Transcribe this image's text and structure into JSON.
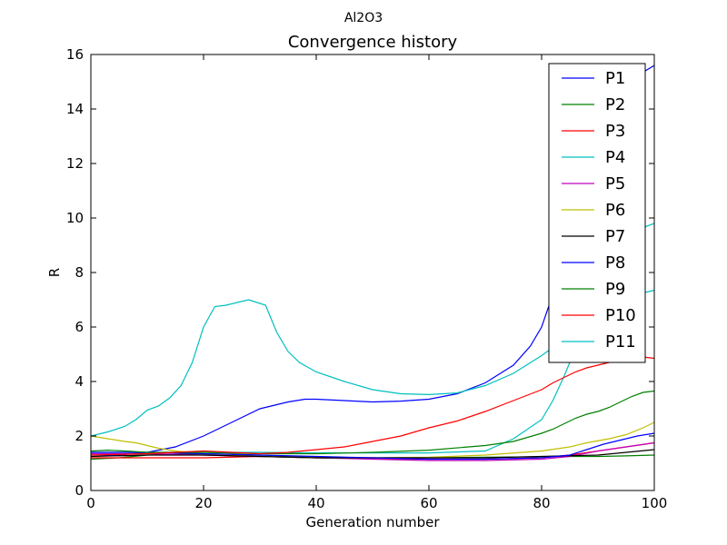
{
  "chart_data": {
    "type": "line",
    "suptitle": "Al2O3",
    "title": "Convergence history",
    "xlabel": "Generation number",
    "ylabel": "R",
    "xlim": [
      0,
      100
    ],
    "ylim": [
      0,
      16
    ],
    "xticks": [
      0,
      20,
      40,
      60,
      80,
      100
    ],
    "yticks": [
      0,
      2,
      4,
      6,
      8,
      10,
      12,
      14,
      16
    ],
    "grid": false,
    "legend_position": "top-right",
    "series": [
      {
        "name": "P1",
        "color": "#0000ff",
        "x": [
          0,
          5,
          10,
          15,
          20,
          25,
          30,
          32,
          35,
          38,
          40,
          45,
          50,
          55,
          60,
          65,
          70,
          75,
          78,
          80,
          82,
          84,
          86,
          88,
          90,
          92,
          94,
          96,
          98,
          100
        ],
        "y": [
          1.3,
          1.3,
          1.4,
          1.6,
          2.0,
          2.5,
          3.0,
          3.1,
          3.25,
          3.35,
          3.35,
          3.3,
          3.25,
          3.28,
          3.35,
          3.55,
          3.95,
          4.6,
          5.3,
          6.0,
          7.2,
          8.6,
          10.2,
          11.5,
          12.6,
          13.6,
          14.4,
          15.0,
          15.35,
          15.6
        ]
      },
      {
        "name": "P2",
        "color": "#008000",
        "x": [
          0,
          5,
          10,
          20,
          30,
          40,
          50,
          60,
          70,
          80,
          85,
          90,
          95,
          100
        ],
        "y": [
          1.15,
          1.2,
          1.3,
          1.35,
          1.3,
          1.22,
          1.2,
          1.2,
          1.22,
          1.24,
          1.25,
          1.25,
          1.27,
          1.3
        ]
      },
      {
        "name": "P3",
        "color": "#ff0000",
        "x": [
          0,
          5,
          10,
          20,
          30,
          40,
          50,
          60,
          70,
          80,
          85,
          90,
          95,
          100
        ],
        "y": [
          1.2,
          1.2,
          1.2,
          1.2,
          1.25,
          1.2,
          1.18,
          1.15,
          1.15,
          1.2,
          1.3,
          1.45,
          1.6,
          1.75
        ]
      },
      {
        "name": "P4",
        "color": "#00bfbf",
        "x": [
          0,
          5,
          10,
          20,
          30,
          40,
          50,
          60,
          70,
          75,
          80,
          82,
          84,
          86,
          88,
          90,
          92,
          94,
          96,
          98,
          100
        ],
        "y": [
          1.4,
          1.4,
          1.4,
          1.4,
          1.4,
          1.38,
          1.38,
          1.38,
          1.45,
          1.9,
          2.6,
          3.3,
          4.2,
          5.2,
          6.3,
          7.3,
          8.2,
          8.9,
          9.4,
          9.65,
          9.8
        ]
      },
      {
        "name": "P5",
        "color": "#bf00bf",
        "x": [
          0,
          10,
          20,
          30,
          40,
          50,
          60,
          70,
          80,
          85,
          90,
          95,
          100
        ],
        "y": [
          1.35,
          1.35,
          1.3,
          1.25,
          1.2,
          1.15,
          1.1,
          1.1,
          1.15,
          1.25,
          1.45,
          1.6,
          1.75
        ]
      },
      {
        "name": "P6",
        "color": "#bfbf00",
        "x": [
          0,
          3,
          6,
          8,
          10,
          12,
          15,
          20,
          25,
          30,
          40,
          50,
          60,
          70,
          80,
          85,
          88,
          92,
          95,
          98,
          100
        ],
        "y": [
          2.0,
          1.9,
          1.8,
          1.75,
          1.65,
          1.55,
          1.45,
          1.35,
          1.3,
          1.25,
          1.2,
          1.2,
          1.22,
          1.3,
          1.45,
          1.6,
          1.75,
          1.9,
          2.05,
          2.3,
          2.5
        ]
      },
      {
        "name": "P7",
        "color": "#000000",
        "x": [
          0,
          10,
          20,
          30,
          40,
          50,
          60,
          70,
          80,
          90,
          95,
          100
        ],
        "y": [
          1.25,
          1.3,
          1.3,
          1.25,
          1.2,
          1.2,
          1.2,
          1.2,
          1.25,
          1.3,
          1.4,
          1.5
        ]
      },
      {
        "name": "P8",
        "color": "#0000ff",
        "x": [
          0,
          10,
          20,
          30,
          40,
          50,
          60,
          70,
          80,
          85,
          88,
          91,
          94,
          97,
          100
        ],
        "y": [
          1.4,
          1.4,
          1.35,
          1.3,
          1.25,
          1.2,
          1.15,
          1.15,
          1.2,
          1.3,
          1.5,
          1.7,
          1.85,
          2.0,
          2.1
        ]
      },
      {
        "name": "P9",
        "color": "#008000",
        "x": [
          0,
          3,
          6,
          10,
          20,
          30,
          40,
          50,
          60,
          70,
          75,
          80,
          82,
          84,
          86,
          88,
          90,
          92,
          94,
          96,
          98,
          100
        ],
        "y": [
          1.45,
          1.48,
          1.45,
          1.4,
          1.4,
          1.35,
          1.35,
          1.4,
          1.48,
          1.65,
          1.8,
          2.1,
          2.25,
          2.45,
          2.65,
          2.8,
          2.9,
          3.05,
          3.25,
          3.45,
          3.6,
          3.65
        ]
      },
      {
        "name": "P10",
        "color": "#ff0000",
        "x": [
          0,
          10,
          20,
          25,
          30,
          35,
          40,
          45,
          50,
          55,
          60,
          65,
          70,
          75,
          80,
          82,
          84,
          86,
          88,
          90,
          92,
          94,
          96,
          98,
          100
        ],
        "y": [
          1.3,
          1.35,
          1.45,
          1.4,
          1.35,
          1.4,
          1.5,
          1.6,
          1.8,
          2.0,
          2.3,
          2.55,
          2.9,
          3.3,
          3.7,
          3.95,
          4.15,
          4.35,
          4.5,
          4.6,
          4.7,
          4.85,
          4.95,
          4.9,
          4.85
        ]
      },
      {
        "name": "P11",
        "color": "#00bfbf",
        "x": [
          0,
          3,
          6,
          8,
          10,
          12,
          14,
          16,
          18,
          20,
          22,
          24,
          26,
          28,
          31,
          33,
          35,
          37,
          40,
          45,
          50,
          55,
          60,
          65,
          70,
          75,
          80,
          85,
          88,
          90,
          92,
          94,
          96,
          98,
          100
        ],
        "y": [
          2.0,
          2.15,
          2.35,
          2.6,
          2.95,
          3.1,
          3.4,
          3.85,
          4.7,
          6.0,
          6.75,
          6.8,
          6.9,
          7.0,
          6.8,
          5.8,
          5.1,
          4.7,
          4.35,
          4.0,
          3.7,
          3.55,
          3.52,
          3.58,
          3.85,
          4.3,
          4.95,
          5.7,
          6.3,
          6.7,
          7.0,
          7.1,
          7.1,
          7.25,
          7.35
        ]
      }
    ]
  }
}
